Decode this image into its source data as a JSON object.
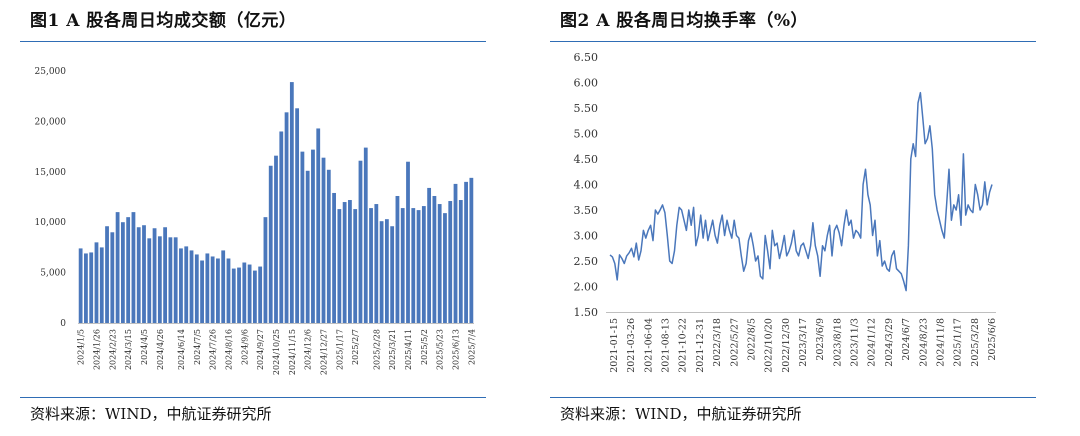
{
  "figures": [
    {
      "title": "图1  A 股各周日均成交额（亿元）",
      "source": "资料来源：WIND，中航证券研究所"
    },
    {
      "title": "图2  A 股各周日均换手率（%）",
      "source": "资料来源：WIND，中航证券研究所"
    }
  ],
  "chart_data": [
    {
      "type": "bar",
      "title": "图1  A 股各周日均成交额（亿元）",
      "xlabel": "",
      "ylabel": "",
      "ylim": [
        0,
        25000
      ],
      "yticks": [
        0,
        5000,
        10000,
        15000,
        20000,
        25000
      ],
      "ytick_labels": [
        "0",
        "5,000",
        "10,000",
        "15,000",
        "20,000",
        "25,000"
      ],
      "grid": false,
      "bar_color": "#4a77bb",
      "xtick_labels": [
        "2024/1/5",
        "2024/1/26",
        "2024/2/23",
        "2024/3/15",
        "2024/4/5",
        "2024/4/26",
        "2024/6/14",
        "2024/7/5",
        "2024/7/26",
        "2024/8/16",
        "2024/9/6",
        "2024/9/27",
        "2024/10/25",
        "2024/11/15",
        "2024/12/6",
        "2024/12/27",
        "2025/1/17",
        "2025/2/7",
        "2025/2/28",
        "2025/3/21",
        "2025/4/11",
        "2025/5/2",
        "2025/5/23",
        "2025/6/13",
        "2025/7/4"
      ],
      "values": [
        7400,
        6900,
        7000,
        8000,
        7500,
        9600,
        9000,
        11000,
        10000,
        10500,
        11000,
        9500,
        9700,
        8400,
        9400,
        8600,
        9500,
        8500,
        8500,
        7400,
        7600,
        7200,
        6800,
        6200,
        6900,
        6600,
        6400,
        7200,
        6400,
        5400,
        5500,
        6000,
        5800,
        5200,
        5600,
        10500,
        15600,
        16600,
        19000,
        20900,
        23900,
        21300,
        17000,
        15100,
        17200,
        19300,
        16400,
        15200,
        12900,
        11300,
        12000,
        12200,
        11300,
        16100,
        17400,
        11400,
        11800,
        10100,
        10300,
        9600,
        12600,
        11400,
        16000,
        11400,
        11200,
        11600,
        13400,
        12600,
        11800,
        10900,
        12100,
        13800,
        12200,
        14000,
        14400
      ]
    },
    {
      "type": "line",
      "title": "图2  A 股各周日均换手率（%）",
      "xlabel": "",
      "ylabel": "",
      "ylim": [
        1.5,
        6.5
      ],
      "yticks": [
        1.5,
        2.0,
        2.5,
        3.0,
        3.5,
        4.0,
        4.5,
        5.0,
        5.5,
        6.0,
        6.5
      ],
      "ytick_labels": [
        "1.50",
        "2.00",
        "2.50",
        "3.00",
        "3.50",
        "4.00",
        "4.50",
        "5.00",
        "5.50",
        "6.00",
        "6.50"
      ],
      "grid": false,
      "line_color": "#4a77bb",
      "xtick_labels": [
        "2021-01-15",
        "2021-03-26",
        "2021-06-04",
        "2021-08-13",
        "2021-10-22",
        "2021-12-31",
        "2022/3/18",
        "2022/5/27",
        "2022/8/5",
        "2022/10/20",
        "2022/12/30",
        "2023/3/17",
        "2023/6/9",
        "2023/8/18",
        "2023/11/3",
        "2024/1/12",
        "2024/3/29",
        "2024/6/7",
        "2024/8/23",
        "2024/11/8",
        "2025/1/17",
        "2025/3/28",
        "2025/6/6"
      ],
      "values": [
        2.62,
        2.58,
        2.45,
        2.13,
        2.62,
        2.55,
        2.45,
        2.6,
        2.66,
        2.75,
        2.58,
        2.85,
        2.52,
        2.7,
        3.1,
        2.95,
        3.1,
        3.2,
        2.9,
        3.5,
        3.42,
        3.5,
        3.6,
        3.45,
        3.0,
        2.5,
        2.45,
        2.7,
        3.2,
        3.55,
        3.5,
        3.3,
        3.1,
        3.5,
        3.2,
        3.55,
        2.8,
        3.0,
        3.4,
        2.95,
        3.3,
        2.9,
        3.1,
        3.3,
        3.0,
        2.85,
        3.2,
        3.4,
        3.0,
        3.3,
        3.1,
        2.95,
        3.3,
        3.0,
        2.95,
        2.6,
        2.3,
        2.45,
        2.9,
        3.05,
        2.8,
        2.5,
        2.6,
        2.2,
        2.15,
        3.0,
        2.7,
        2.35,
        3.1,
        2.8,
        2.85,
        2.55,
        2.75,
        3.0,
        2.6,
        2.7,
        2.85,
        3.1,
        2.7,
        2.6,
        2.8,
        2.85,
        2.7,
        2.55,
        2.8,
        3.25,
        2.8,
        2.6,
        2.2,
        2.8,
        2.7,
        3.0,
        3.2,
        2.6,
        3.1,
        3.2,
        3.05,
        2.8,
        3.2,
        3.5,
        3.2,
        3.3,
        2.95,
        3.1,
        3.05,
        2.95,
        4.0,
        4.3,
        3.8,
        3.6,
        3.0,
        3.3,
        2.6,
        2.9,
        2.4,
        2.5,
        2.35,
        2.3,
        2.6,
        2.7,
        2.35,
        2.3,
        2.25,
        2.1,
        1.92,
        2.8,
        4.5,
        4.8,
        4.55,
        5.6,
        5.8,
        5.3,
        4.8,
        4.9,
        5.15,
        4.7,
        3.8,
        3.5,
        3.3,
        3.1,
        2.95,
        3.6,
        4.3,
        3.3,
        3.6,
        3.5,
        3.8,
        3.2,
        4.6,
        3.4,
        3.6,
        3.5,
        3.45,
        4.0,
        3.8,
        3.5,
        3.6,
        4.05,
        3.6,
        3.85,
        4.0
      ]
    }
  ]
}
